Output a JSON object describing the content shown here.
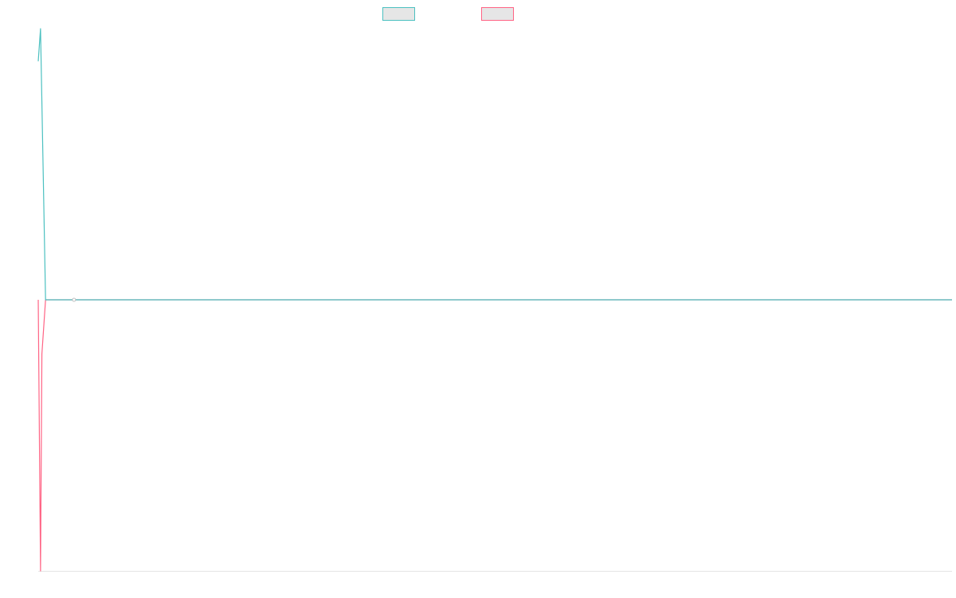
{
  "colors": {
    "series_a": "#4bc0c0",
    "series_b": "#ff6384",
    "swatch_fill": "#e6e6e6",
    "axis": "#e5e5e5"
  },
  "chart_data": {
    "type": "line",
    "title": "",
    "xlabel": "",
    "ylabel": "",
    "grid": false,
    "legend_placement": "top",
    "xlim": [
      0,
      100
    ],
    "ylim": [
      -1,
      1
    ],
    "series": [
      {
        "color": "#4bc0c0",
        "points": [
          [
            0,
            0.88
          ],
          [
            0.25,
            1.0
          ],
          [
            0.8,
            0.0
          ],
          [
            4,
            0.0
          ],
          [
            100,
            0.0
          ]
        ]
      },
      {
        "color": "#ff6384",
        "points": [
          [
            0,
            0.0
          ],
          [
            0.25,
            -1.0
          ],
          [
            0.4,
            -0.2
          ],
          [
            0.8,
            0.0
          ],
          [
            4,
            0.0
          ],
          [
            100,
            0.0
          ]
        ]
      }
    ]
  }
}
